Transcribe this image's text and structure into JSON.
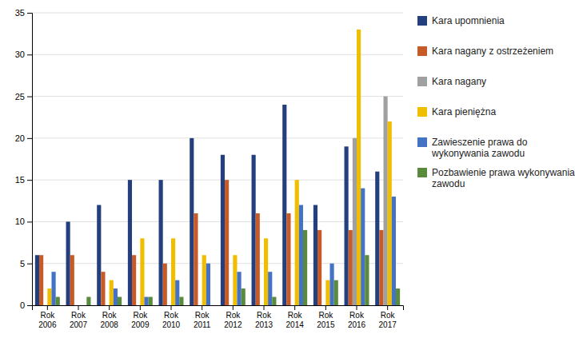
{
  "chart_data": {
    "type": "bar",
    "categories": [
      "Rok\n2006",
      "Rok\n2007",
      "Rok\n2008",
      "Rok\n2009",
      "Rok\n2010",
      "Rok\n2011",
      "Rok\n2012",
      "Rok\n2013",
      "Rok\n2014",
      "Rok\n2015",
      "Rok\n2016",
      "Rok\n2017"
    ],
    "series": [
      {
        "name": "Kara upomnienia",
        "color": "#243F7E",
        "values": [
          6,
          10,
          12,
          15,
          15,
          20,
          18,
          18,
          24,
          12,
          19,
          16
        ]
      },
      {
        "name": "Kara nagany z ostrzeżeniem",
        "color": "#C75B28",
        "values": [
          6,
          6,
          4,
          6,
          5,
          11,
          15,
          11,
          11,
          9,
          9,
          9
        ]
      },
      {
        "name": "Kara nagany",
        "color": "#A0A0A0",
        "values": [
          0,
          0,
          0,
          0,
          0,
          0,
          0,
          0,
          0,
          0,
          20,
          25
        ]
      },
      {
        "name": "Kara pieniężna",
        "color": "#EFBE00",
        "values": [
          2,
          0,
          3,
          8,
          8,
          6,
          6,
          8,
          15,
          3,
          33,
          22
        ]
      },
      {
        "name": "Zawieszenie prawa do\nwykonywania zawodu",
        "color": "#4472C4",
        "values": [
          4,
          0,
          2,
          1,
          3,
          5,
          4,
          4,
          12,
          5,
          14,
          13
        ]
      },
      {
        "name": "Pozbawienie prawa wykonywania\nzawodu",
        "color": "#5A8A3C",
        "values": [
          1,
          1,
          1,
          1,
          1,
          0,
          2,
          1,
          9,
          3,
          6,
          2
        ]
      }
    ],
    "ylim": [
      0,
      35
    ],
    "yticks": [
      0,
      5,
      10,
      15,
      20,
      25,
      30,
      35
    ],
    "grid": true,
    "legend": "right"
  }
}
